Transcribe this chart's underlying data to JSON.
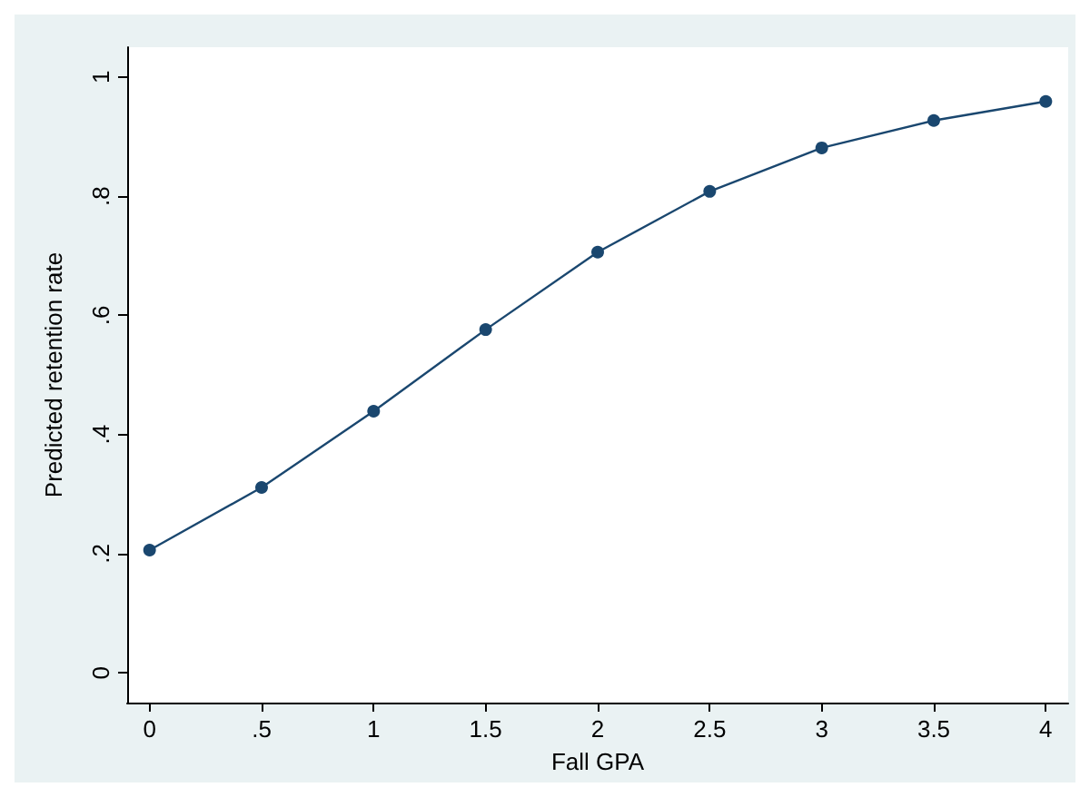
{
  "chart_data": {
    "type": "line",
    "xlabel": "Fall GPA",
    "ylabel": "Predicted retention rate",
    "x": [
      0,
      0.5,
      1,
      1.5,
      2,
      2.5,
      3,
      3.5,
      4
    ],
    "series": [
      {
        "color": "#1a476f",
        "values": [
          0.206,
          0.311,
          0.439,
          0.576,
          0.706,
          0.808,
          0.881,
          0.927,
          0.959
        ]
      }
    ],
    "xlim": [
      -0.1,
      4.1
    ],
    "xticks": [
      0,
      {
        "value": 0.5,
        "label": ".5"
      },
      1,
      1.5,
      2,
      2.5,
      3,
      3.5,
      4
    ],
    "ylim": [
      -0.05,
      1.05
    ],
    "yticks": [
      0,
      {
        "value": 0.2,
        "label": ".2"
      },
      {
        "value": 0.4,
        "label": ".4"
      },
      {
        "value": 0.6,
        "label": ".6"
      },
      {
        "value": 0.8,
        "label": ".8"
      },
      1
    ],
    "grid": false,
    "marker": "circle",
    "line_style": "solid"
  }
}
